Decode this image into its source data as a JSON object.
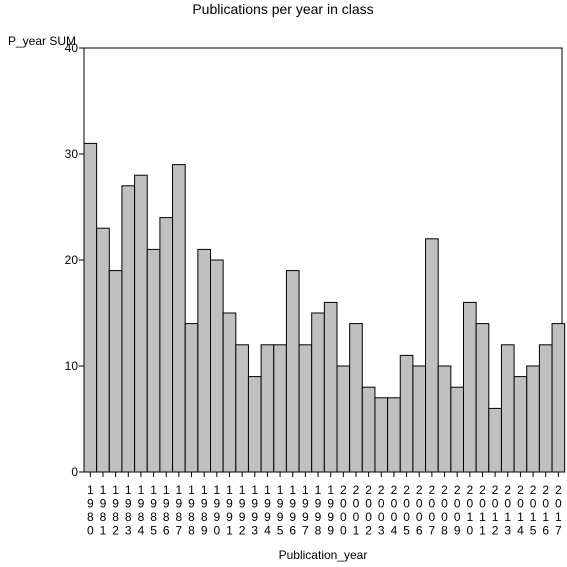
{
  "chart_data": {
    "type": "bar",
    "title": "Publications per year in class",
    "ylabel": "P_year SUM",
    "xlabel": "Publication_year",
    "ylim": [
      0,
      40
    ],
    "yticks": [
      0,
      10,
      20,
      30,
      40
    ],
    "categories": [
      "1980",
      "1981",
      "1982",
      "1983",
      "1984",
      "1985",
      "1986",
      "1987",
      "1988",
      "1989",
      "1990",
      "1991",
      "1992",
      "1993",
      "1994",
      "1995",
      "1996",
      "1997",
      "1998",
      "1999",
      "2000",
      "2001",
      "2002",
      "2003",
      "2004",
      "2005",
      "2006",
      "2007",
      "2008",
      "2009",
      "2010",
      "2011",
      "2012",
      "2013",
      "2014",
      "2015",
      "2016",
      "2017"
    ],
    "values": [
      31,
      23,
      19,
      27,
      28,
      21,
      24,
      29,
      14,
      21,
      20,
      15,
      12,
      9,
      12,
      12,
      19,
      12,
      15,
      16,
      10,
      14,
      8,
      7,
      7,
      11,
      10,
      22,
      10,
      8,
      16,
      14,
      6,
      12,
      9,
      10,
      12,
      14
    ],
    "grid": false,
    "colors": {
      "bar_fill": "#c0c0c0",
      "bar_stroke": "#000000"
    }
  }
}
